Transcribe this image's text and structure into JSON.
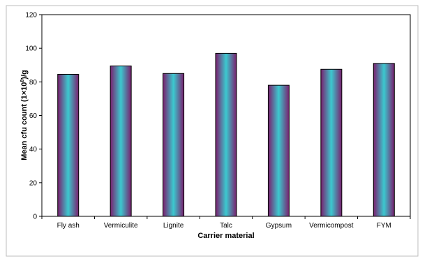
{
  "chart_data": {
    "type": "bar",
    "title": "",
    "xlabel": "Carrier material",
    "ylabel_parts": [
      "Mean cfu count (1×10",
      "8",
      ")/g"
    ],
    "categories": [
      "Fly ash",
      "Vermiculite",
      "Lignite",
      "Talc",
      "Gypsum",
      "Vermicompost",
      "FYM"
    ],
    "values": [
      84.5,
      89.5,
      85,
      97,
      78,
      87.5,
      91
    ],
    "ylim": [
      0,
      120
    ],
    "yticks": [
      0,
      20,
      40,
      60,
      80,
      100,
      120
    ],
    "grid": false,
    "legend": "none",
    "bar_colors": {
      "edge": "#7a1f6e",
      "center": "#3cc9cf",
      "outline": "#000000"
    }
  }
}
